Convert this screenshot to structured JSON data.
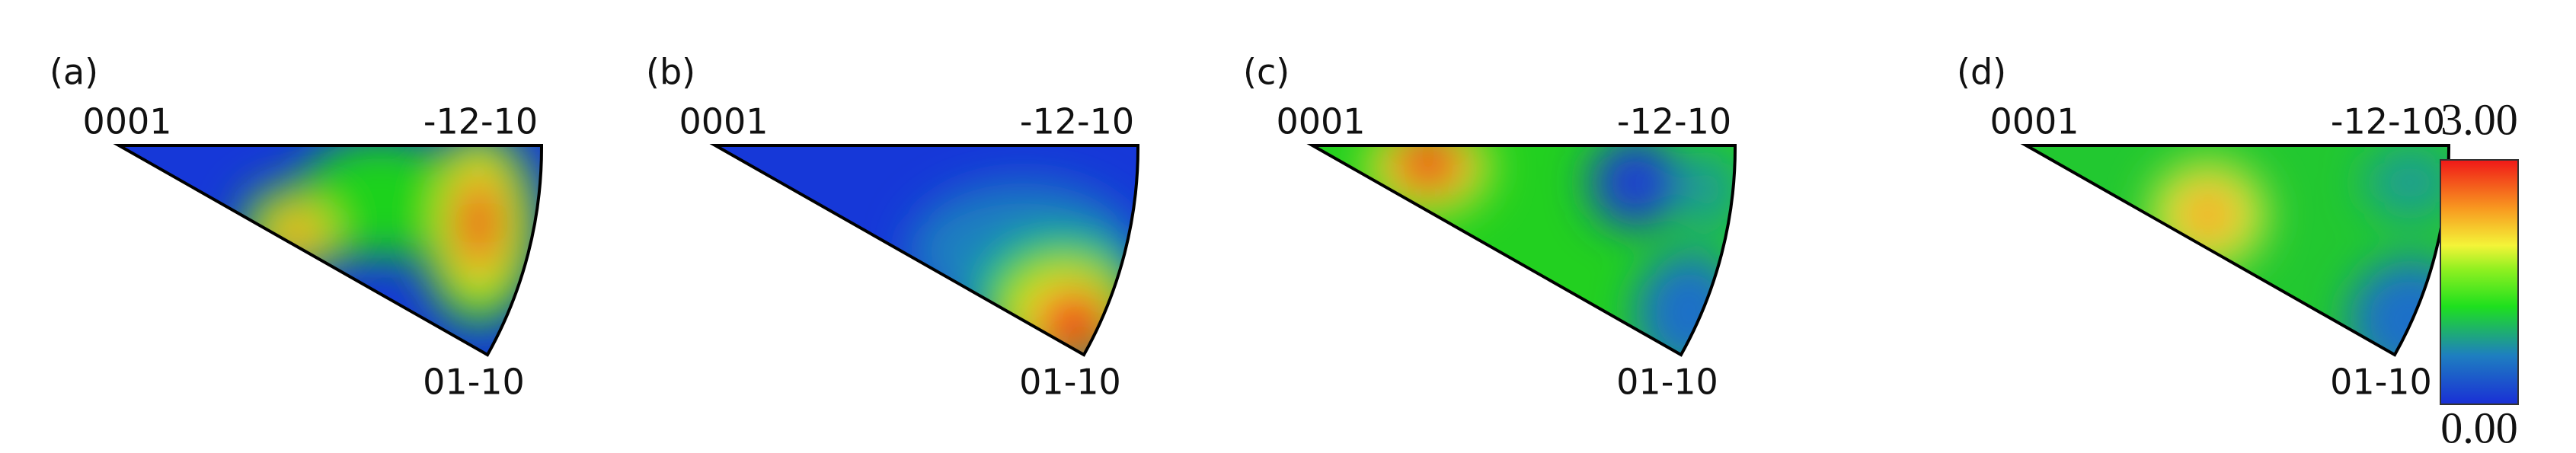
{
  "panels": [
    {
      "label": "(a)",
      "top_left": "0001",
      "top_right": "-12-10",
      "bottom": "01-10"
    },
    {
      "label": "(b)",
      "top_left": "0001",
      "top_right": "-12-10",
      "bottom": "01-10"
    },
    {
      "label": "(c)",
      "top_left": "0001",
      "top_right": "-12-10",
      "bottom": "01-10"
    },
    {
      "label": "(d)",
      "top_left": "0001",
      "top_right": "-12-10",
      "bottom": "01-10"
    }
  ],
  "colorbar": {
    "max": "3.00",
    "min": "0.00"
  }
}
